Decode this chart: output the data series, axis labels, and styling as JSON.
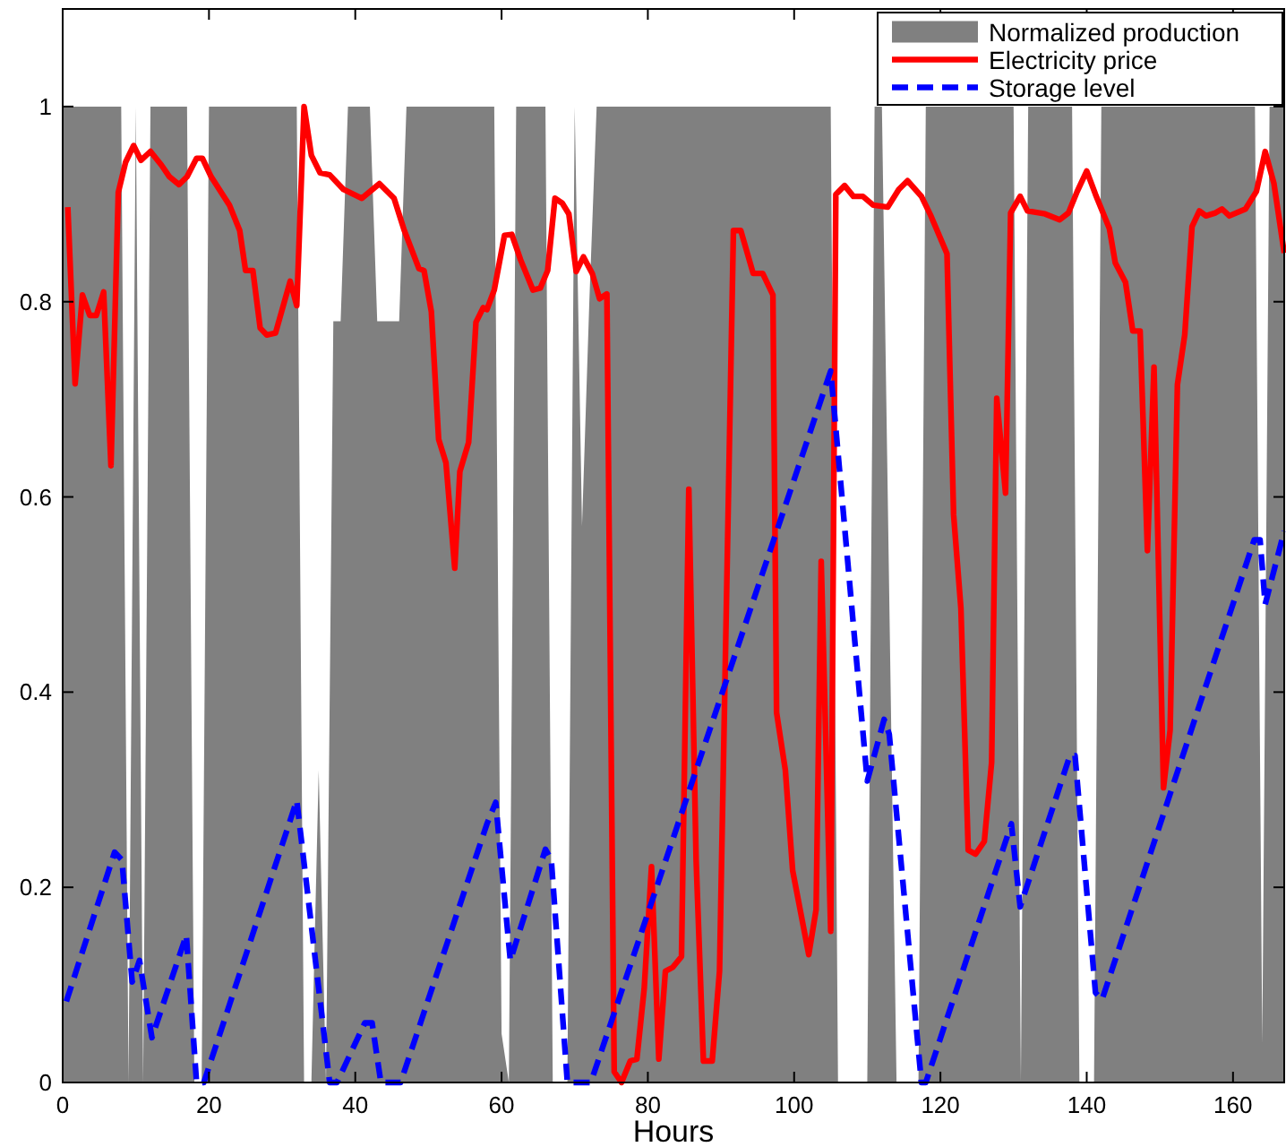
{
  "chart_data": {
    "type": "line",
    "xlabel": "Hours",
    "xlim": [
      0,
      167
    ],
    "ylim": [
      0,
      1.1
    ],
    "xticks": [
      0,
      20,
      40,
      60,
      80,
      100,
      120,
      140,
      160
    ],
    "yticks": [
      0,
      0.2,
      0.4,
      0.6,
      0.8,
      1
    ],
    "legend": "top right",
    "grid": false,
    "series": [
      {
        "name": "Normalized production",
        "type": "area",
        "color": "#808080",
        "x": [
          0,
          8,
          9,
          10,
          11,
          12,
          17,
          18,
          19,
          20,
          32,
          33,
          34,
          35,
          36,
          37,
          38,
          39,
          42,
          43,
          44,
          45,
          46,
          47,
          59,
          60,
          61,
          62,
          66,
          67,
          68,
          69,
          70,
          71,
          72,
          73,
          105,
          106,
          110,
          111,
          112,
          113,
          114,
          117,
          118,
          130,
          131,
          132,
          138,
          139,
          141,
          142,
          163,
          164,
          165,
          167
        ],
        "values": [
          1,
          1,
          0,
          1,
          0,
          1,
          1,
          0,
          0,
          1,
          1,
          0,
          0,
          0.32,
          0,
          0.78,
          0.78,
          1,
          1,
          0.78,
          0.78,
          0.78,
          0.78,
          1,
          1,
          0.05,
          0,
          1,
          1,
          0,
          0,
          0,
          1,
          0.57,
          0.8,
          1,
          1,
          0,
          0,
          1,
          1,
          0.5,
          0,
          0,
          1,
          1,
          0,
          1,
          1,
          0,
          0,
          1,
          1,
          0.04,
          1,
          1
        ]
      },
      {
        "name": "Electricity price",
        "color": "#ff0000",
        "line_style": "solid",
        "x": [
          0.7,
          1.7,
          2.7,
          3.7,
          4.6,
          5.6,
          6.6,
          7.6,
          8.6,
          9.7,
          10.7,
          12,
          13.5,
          14.6,
          15.9,
          17,
          18.3,
          19.1,
          20.3,
          22.8,
          24.2,
          25,
          26,
          27,
          27.9,
          29.1,
          31.1,
          32,
          33,
          34,
          35.2,
          36.5,
          38.4,
          40.9,
          43.3,
          45.3,
          46.7,
          48.7,
          49.4,
          50.4,
          51.4,
          52.4,
          53.6,
          54.3,
          55.5,
          56.5,
          57.5,
          58,
          59,
          60.4,
          61.4,
          62.6,
          64.3,
          65.3,
          66.3,
          67.3,
          68.3,
          69.2,
          70.2,
          71.2,
          72.4,
          73.4,
          74.4,
          75.4,
          76.4,
          77.6,
          78.5,
          79.5,
          80.5,
          81.5,
          82.4,
          83.4,
          84.6,
          85.6,
          86.6,
          87.6,
          88.8,
          89.8,
          91.7,
          92.7,
          94.4,
          95.7,
          97.1,
          97.6,
          98.8,
          99.8,
          102,
          103,
          103.7,
          105,
          105.7,
          106.9,
          108.1,
          109.4,
          110.8,
          112.8,
          114.3,
          115.5,
          117.4,
          118.7,
          120.9,
          121.8,
          122.8,
          123.8,
          124.8,
          126,
          127,
          127.7,
          128.9,
          129.6,
          130.9,
          131.9,
          134.3,
          136.3,
          137.5,
          138.7,
          140,
          141.2,
          143.1,
          143.9,
          145.3,
          146.3,
          147.3,
          148.3,
          149.2,
          150.5,
          151.4,
          152.4,
          153.4,
          154.4,
          155.4,
          156.3,
          157.6,
          158.5,
          159.5,
          161.7,
          163.2,
          164.4,
          165.6,
          167
        ],
        "values": [
          0.897,
          0.716,
          0.807,
          0.786,
          0.786,
          0.81,
          0.632,
          0.912,
          0.943,
          0.96,
          0.945,
          0.954,
          0.94,
          0.928,
          0.92,
          0.928,
          0.947,
          0.947,
          0.928,
          0.899,
          0.873,
          0.832,
          0.832,
          0.773,
          0.766,
          0.768,
          0.821,
          0.796,
          1.0,
          0.95,
          0.932,
          0.93,
          0.915,
          0.906,
          0.921,
          0.906,
          0.873,
          0.834,
          0.832,
          0.79,
          0.659,
          0.635,
          0.527,
          0.626,
          0.656,
          0.779,
          0.794,
          0.792,
          0.812,
          0.868,
          0.869,
          0.843,
          0.812,
          0.814,
          0.832,
          0.906,
          0.901,
          0.89,
          0.831,
          0.846,
          0.829,
          0.803,
          0.808,
          0.011,
          0.0,
          0.022,
          0.024,
          0.096,
          0.221,
          0.024,
          0.114,
          0.118,
          0.129,
          0.608,
          0.228,
          0.022,
          0.022,
          0.114,
          0.873,
          0.873,
          0.829,
          0.829,
          0.807,
          0.379,
          0.32,
          0.217,
          0.131,
          0.177,
          0.534,
          0.155,
          0.91,
          0.919,
          0.908,
          0.908,
          0.899,
          0.897,
          0.915,
          0.924,
          0.908,
          0.888,
          0.849,
          0.582,
          0.486,
          0.238,
          0.234,
          0.247,
          0.328,
          0.701,
          0.604,
          0.891,
          0.908,
          0.893,
          0.89,
          0.884,
          0.891,
          0.913,
          0.934,
          0.91,
          0.875,
          0.84,
          0.82,
          0.77,
          0.77,
          0.545,
          0.733,
          0.302,
          0.361,
          0.715,
          0.766,
          0.877,
          0.893,
          0.888,
          0.891,
          0.895,
          0.888,
          0.895,
          0.913,
          0.954,
          0.921,
          0.85
        ]
      },
      {
        "name": "Storage level",
        "color": "#0000ff",
        "line_style": "dashed",
        "x": [
          0.5,
          7.1,
          8.1,
          9.5,
          10.5,
          12.2,
          16.9,
          18.3,
          19.3,
          32,
          36.5,
          37.5,
          41.3,
          42.3,
          43.5,
          46.2,
          58,
          59.2,
          61.2,
          66,
          66.8,
          69,
          70.7,
          72.2,
          105,
          110,
          112.3,
          113,
          117.4,
          118,
          129.7,
          130.9,
          137.7,
          138.4,
          141.2,
          142.1,
          162.9,
          163.7,
          164.4,
          167
        ],
        "values": [
          0.083,
          0.236,
          0.228,
          0.103,
          0.125,
          0.046,
          0.151,
          0,
          0,
          0.289,
          0,
          0,
          0.061,
          0.061,
          0,
          0,
          0.265,
          0.287,
          0.125,
          0.239,
          0.228,
          0,
          0,
          0,
          0.729,
          0.309,
          0.372,
          0.357,
          0,
          0,
          0.265,
          0.18,
          0.335,
          0.335,
          0.092,
          0.085,
          0.556,
          0.556,
          0.49,
          0.565
        ]
      }
    ]
  }
}
